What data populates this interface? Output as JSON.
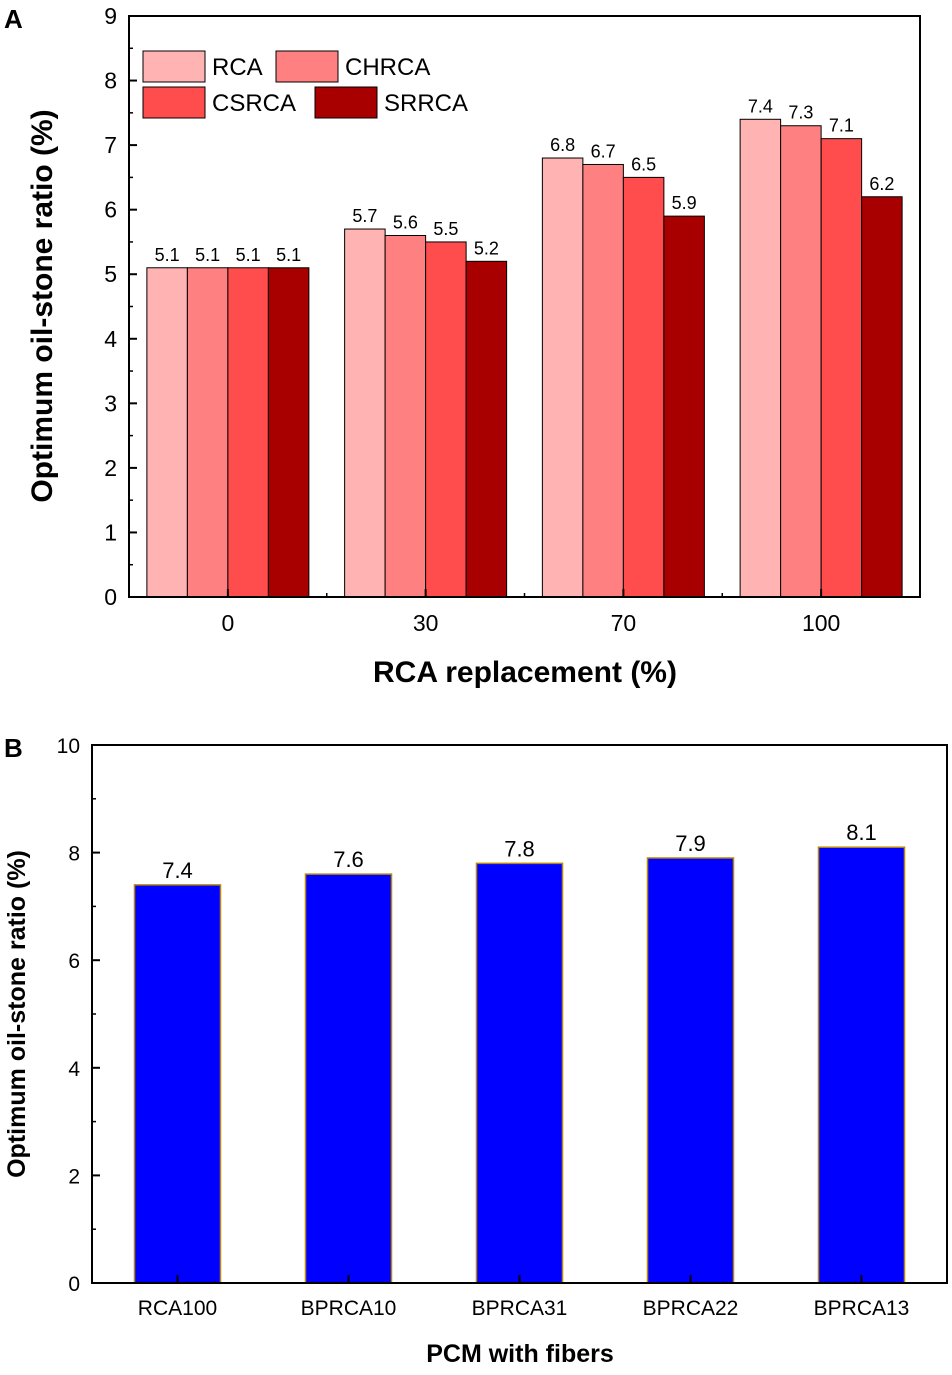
{
  "chart_data": [
    {
      "panel": "A",
      "type": "bar",
      "xlabel": "RCA replacement (%)",
      "ylabel": "Optimum oil-stone ratio (%)",
      "ylim": [
        0,
        9
      ],
      "yticks": [
        "0",
        "1",
        "2",
        "3",
        "4",
        "5",
        "6",
        "7",
        "8",
        "9"
      ],
      "categories": [
        "0",
        "30",
        "70",
        "100"
      ],
      "series": [
        {
          "name": "RCA",
          "color": "#ffb3b3",
          "values": [
            5.1,
            5.7,
            6.8,
            7.4
          ],
          "labels": [
            "5.1",
            "5.7",
            "6.8",
            "7.4"
          ]
        },
        {
          "name": "CHRCA",
          "color": "#ff8080",
          "values": [
            5.1,
            5.6,
            6.7,
            7.3
          ],
          "labels": [
            "5.1",
            "5.6",
            "6.7",
            "7.3"
          ]
        },
        {
          "name": "CSRCA",
          "color": "#ff4d4d",
          "values": [
            5.1,
            5.5,
            6.5,
            7.1
          ],
          "labels": [
            "5.1",
            "5.5",
            "6.5",
            "7.1"
          ]
        },
        {
          "name": "SRRCA",
          "color": "#a80000",
          "values": [
            5.1,
            5.2,
            5.9,
            6.2
          ],
          "labels": [
            "5.1",
            "5.2",
            "5.9",
            "6.2"
          ]
        }
      ],
      "legend": "top-left"
    },
    {
      "panel": "B",
      "type": "bar",
      "xlabel": "PCM with fibers",
      "ylabel": "Optimum oil-stone ratio (%)",
      "ylim": [
        0,
        10
      ],
      "yticks": [
        "0",
        "2",
        "4",
        "6",
        "8",
        "10"
      ],
      "categories": [
        "RCA100",
        "BPRCA10",
        "BPRCA31",
        "BPRCA22",
        "BPRCA13"
      ],
      "values": [
        7.4,
        7.6,
        7.8,
        7.9,
        8.1
      ],
      "labels": [
        "7.4",
        "7.6",
        "7.8",
        "7.9",
        "8.1"
      ],
      "color": "#0000ff",
      "edge_color": "#b8860b"
    }
  ]
}
